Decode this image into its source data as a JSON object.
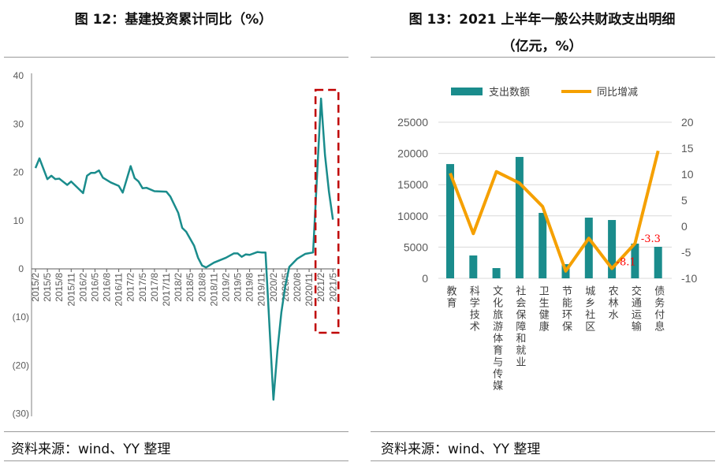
{
  "left": {
    "title": "图 12：基建投资累计同比（%）",
    "source": "资料来源：wind、YY 整理",
    "chart_data": {
      "type": "line",
      "title": "图 12：基建投资累计同比（%）",
      "ylim": [
        -30,
        40
      ],
      "yticks": [
        {
          "v": 40,
          "label": "40"
        },
        {
          "v": 30,
          "label": "30"
        },
        {
          "v": 20,
          "label": "20"
        },
        {
          "v": 10,
          "label": "10"
        },
        {
          "v": 0,
          "label": "0"
        },
        {
          "v": -10,
          "label": "(10)"
        },
        {
          "v": -20,
          "label": "(20)"
        },
        {
          "v": -30,
          "label": "(30)"
        }
      ],
      "negative_label_color": "#ff0000",
      "xticks": [
        "2015/2",
        "2015/5",
        "2015/8",
        "2015/11",
        "2016/2",
        "2016/5",
        "2016/8",
        "2016/11",
        "2017/2",
        "2017/5",
        "2017/8",
        "2017/11",
        "2018/2",
        "2018/5",
        "2018/8",
        "2018/11",
        "2019/2",
        "2019/5",
        "2019/8",
        "2019/11",
        "2020/2",
        "2020/5",
        "2020/8",
        "2020/11",
        "2021/2",
        "2021/5"
      ],
      "line_color": "#1a8c8c",
      "highlight_box": {
        "from": "2021/2",
        "to": "2021/5",
        "color": "#c00000",
        "style": "dashed"
      },
      "series": [
        {
          "x": [
            "2015/2",
            "2015/3",
            "2015/5",
            "2015/6",
            "2015/7",
            "2015/8",
            "2015/10",
            "2015/11",
            "2016/2",
            "2016/3",
            "2016/4",
            "2016/5",
            "2016/6",
            "2016/7",
            "2016/9",
            "2016/11",
            "2016/12",
            "2017/2",
            "2017/3",
            "2017/4",
            "2017/5",
            "2017/6",
            "2017/8",
            "2017/11",
            "2017/12",
            "2018/2",
            "2018/3",
            "2018/4",
            "2018/6",
            "2018/7",
            "2018/8",
            "2018/9",
            "2018/11",
            "2019/2",
            "2019/4",
            "2019/5",
            "2019/6",
            "2019/7",
            "2019/8",
            "2019/10",
            "2019/11",
            "2019/12",
            "2020/2",
            "2020/3",
            "2020/4",
            "2020/5",
            "2020/6",
            "2020/8",
            "2020/10",
            "2020/12",
            "2021/2",
            "2021/3",
            "2021/4",
            "2021/5"
          ],
          "y": [
            20.9,
            22.9,
            18.6,
            19.3,
            18.6,
            18.7,
            17.4,
            18.1,
            15.7,
            19.3,
            19.9,
            19.9,
            20.4,
            18.9,
            17.9,
            17.2,
            15.8,
            21.3,
            18.8,
            18.1,
            16.7,
            16.8,
            16.1,
            16.0,
            15.0,
            11.6,
            8.5,
            7.7,
            4.8,
            2.3,
            0.7,
            0.3,
            1.3,
            2.3,
            3.2,
            3.2,
            2.5,
            3.0,
            2.9,
            3.5,
            3.4,
            3.4,
            -27.1,
            -17.0,
            -9.0,
            -3.5,
            0.4,
            2.1,
            3.1,
            3.4,
            35.3,
            23.6,
            16.0,
            10.2
          ]
        }
      ]
    }
  },
  "right": {
    "title_line1": "图 13：2021 上半年一般公共财政支出明细",
    "title_line2": "（亿元，%）",
    "source": "资料来源：wind、YY 整理",
    "chart_data": {
      "type": "bar+line",
      "categories": [
        "教育",
        "科学技术",
        "文化旅游体育与传媒",
        "社会保障和就业",
        "卫生健康",
        "节能环保",
        "城乡社区",
        "农林水",
        "交通运输",
        "债务付息"
      ],
      "left_ylim": [
        0,
        25000
      ],
      "left_yticks": [
        "0",
        "5000",
        "10000",
        "15000",
        "20000",
        "25000"
      ],
      "right_ylim": [
        -10,
        20
      ],
      "right_yticks": [
        "-10",
        "-5",
        "0",
        "5",
        "10",
        "15",
        "20"
      ],
      "legend_position": "top",
      "grid": true,
      "series": [
        {
          "name": "支出数额",
          "type": "bar",
          "axis": "left",
          "color": "#1a8c8c",
          "values": [
            18300,
            3660,
            1640,
            19440,
            10480,
            2270,
            9720,
            9340,
            5560,
            5050
          ]
        },
        {
          "name": "同比增减",
          "type": "line",
          "axis": "right",
          "color": "#f5a000",
          "values": [
            10.2,
            -1.4,
            10.5,
            8.3,
            3.8,
            -8.6,
            -2.3,
            -8.1,
            -3.3,
            14.5
          ]
        }
      ],
      "data_labels": [
        {
          "category": "农林水",
          "text": "-8.1"
        },
        {
          "category": "交通运输",
          "text": "-3.3"
        }
      ],
      "data_label_color": "#ff0000"
    }
  }
}
